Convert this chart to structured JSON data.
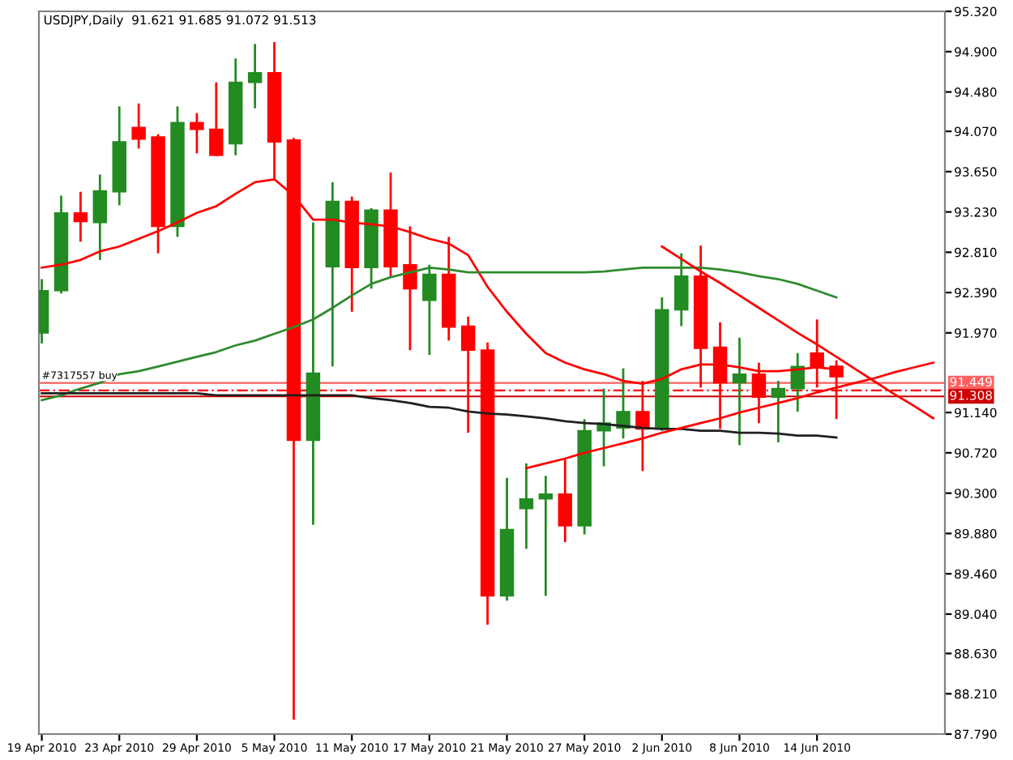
{
  "chart_data": {
    "type": "candlestick",
    "title": "USDJPY,Daily  91.621 91.685 91.072 91.513",
    "categories": [
      "19 Apr 2010",
      null,
      null,
      null,
      "23 Apr 2010",
      null,
      null,
      null,
      "29 Apr 2010",
      null,
      null,
      null,
      "5 May 2010",
      null,
      null,
      null,
      "11 May 2010",
      null,
      null,
      null,
      "17 May 2010",
      null,
      null,
      null,
      "21 May 2010",
      null,
      null,
      null,
      "27 May 2010",
      null,
      null,
      null,
      "2 Jun 2010",
      null,
      null,
      null,
      "8 Jun 2010",
      null,
      null,
      null,
      "14 Jun 2010",
      null,
      null,
      null,
      null,
      null,
      null
    ],
    "ohlc": [
      [
        91.97,
        92.53,
        91.86,
        92.41
      ],
      [
        92.41,
        93.4,
        92.38,
        93.22
      ],
      [
        93.22,
        93.44,
        92.92,
        93.13
      ],
      [
        93.12,
        93.62,
        92.73,
        93.45
      ],
      [
        93.44,
        94.33,
        93.3,
        93.96
      ],
      [
        94.11,
        94.36,
        93.89,
        93.99
      ],
      [
        94.01,
        94.04,
        92.8,
        93.08
      ],
      [
        93.08,
        94.33,
        92.97,
        94.16
      ],
      [
        94.16,
        94.26,
        93.84,
        94.09
      ],
      [
        94.09,
        94.58,
        93.81,
        93.82
      ],
      [
        93.94,
        94.83,
        93.82,
        94.58
      ],
      [
        94.58,
        94.98,
        94.31,
        94.68
      ],
      [
        94.68,
        95.0,
        93.57,
        93.96
      ],
      [
        93.98,
        94.0,
        87.94,
        90.85
      ],
      [
        90.85,
        93.12,
        89.97,
        91.55
      ],
      [
        92.66,
        93.54,
        91.62,
        93.34
      ],
      [
        93.34,
        93.39,
        92.19,
        92.65
      ],
      [
        92.65,
        93.27,
        92.43,
        93.25
      ],
      [
        93.25,
        93.64,
        92.56,
        92.66
      ],
      [
        92.68,
        93.08,
        91.79,
        92.43
      ],
      [
        92.31,
        92.68,
        91.74,
        92.58
      ],
      [
        92.58,
        92.97,
        91.89,
        92.03
      ],
      [
        92.04,
        92.14,
        90.93,
        91.79
      ],
      [
        91.79,
        91.87,
        88.93,
        89.23
      ],
      [
        89.23,
        90.46,
        89.18,
        89.92
      ],
      [
        90.14,
        90.61,
        89.72,
        90.24
      ],
      [
        90.24,
        90.48,
        89.23,
        90.29
      ],
      [
        90.29,
        90.65,
        89.79,
        89.96
      ],
      [
        89.96,
        91.07,
        89.87,
        90.95
      ],
      [
        90.95,
        91.39,
        90.58,
        91.03
      ],
      [
        90.98,
        91.6,
        90.87,
        91.15
      ],
      [
        91.15,
        91.47,
        90.53,
        90.97
      ],
      [
        90.97,
        92.34,
        90.95,
        92.21
      ],
      [
        92.21,
        92.8,
        92.04,
        92.56
      ],
      [
        92.56,
        92.88,
        91.4,
        91.81
      ],
      [
        91.82,
        92.08,
        90.97,
        91.45
      ],
      [
        91.45,
        91.92,
        90.8,
        91.54
      ],
      [
        91.54,
        91.66,
        91.03,
        91.3
      ],
      [
        91.3,
        91.47,
        90.83,
        91.39
      ],
      [
        91.39,
        91.76,
        91.15,
        91.62
      ],
      [
        91.76,
        92.11,
        91.4,
        91.62
      ],
      [
        91.621,
        91.685,
        91.072,
        91.513
      ],
      null,
      null,
      null,
      null,
      null
    ],
    "colors": [
      "#228b22",
      "#228b22",
      "#ff0000",
      "#228b22",
      "#228b22",
      "#ff0000",
      "#ff0000",
      "#228b22",
      "#ff0000",
      "#ff0000",
      "#228b22",
      "#228b22",
      "#ff0000",
      "#ff0000",
      "#228b22",
      "#228b22",
      "#ff0000",
      "#228b22",
      "#ff0000",
      "#ff0000",
      "#228b22",
      "#ff0000",
      "#ff0000",
      "#ff0000",
      "#228b22",
      "#228b22",
      "#228b22",
      "#ff0000",
      "#228b22",
      "#228b22",
      "#228b22",
      "#ff0000",
      "#228b22",
      "#228b22",
      "#ff0000",
      "#ff0000",
      "#228b22",
      "#ff0000",
      "#228b22",
      "#228b22",
      "#ff0000",
      "#ff0000",
      null,
      null,
      null,
      null,
      null
    ],
    "series": [
      {
        "type": "line",
        "color": "#ff0000",
        "values": [
          92.65,
          92.68,
          92.73,
          92.82,
          92.87,
          92.95,
          93.03,
          93.12,
          93.22,
          93.29,
          93.42,
          93.54,
          93.57,
          93.4,
          93.15,
          93.15,
          93.12,
          93.1,
          93.08,
          93.02,
          92.95,
          92.9,
          92.78,
          92.45,
          92.19,
          91.96,
          91.76,
          91.66,
          91.59,
          91.54,
          91.47,
          91.44,
          91.49,
          91.59,
          91.64,
          91.64,
          91.61,
          91.57,
          91.57,
          91.59,
          91.61,
          91.59,
          null,
          null,
          null,
          null,
          null
        ]
      },
      {
        "type": "line",
        "color": "#2e8b2e",
        "values": [
          91.27,
          91.32,
          91.39,
          91.45,
          91.54,
          91.57,
          91.62,
          91.67,
          91.72,
          91.77,
          91.84,
          91.89,
          91.96,
          92.03,
          92.11,
          92.23,
          92.36,
          92.48,
          92.55,
          92.6,
          92.65,
          92.63,
          92.6,
          92.6,
          92.6,
          92.6,
          92.6,
          92.6,
          92.6,
          92.61,
          92.63,
          92.65,
          92.65,
          92.65,
          92.65,
          92.63,
          92.6,
          92.56,
          92.53,
          92.48,
          92.41,
          92.34,
          null,
          null,
          null,
          null,
          null
        ]
      },
      {
        "type": "line",
        "color": "#202020",
        "values": [
          91.34,
          91.34,
          91.34,
          91.34,
          91.34,
          91.34,
          91.34,
          91.34,
          91.34,
          91.32,
          91.32,
          91.32,
          91.32,
          91.32,
          91.32,
          91.32,
          91.32,
          91.29,
          91.27,
          91.24,
          91.2,
          91.19,
          91.15,
          91.13,
          91.12,
          91.1,
          91.08,
          91.05,
          91.03,
          91.02,
          91.0,
          90.98,
          90.97,
          90.97,
          90.95,
          90.95,
          90.93,
          90.93,
          90.92,
          90.9,
          90.9,
          90.88,
          null,
          null,
          null,
          null,
          null
        ]
      },
      {
        "type": "line",
        "color": "#ff0000",
        "values": [
          null,
          null,
          null,
          null,
          null,
          null,
          null,
          null,
          null,
          null,
          null,
          null,
          null,
          null,
          null,
          null,
          null,
          null,
          null,
          null,
          null,
          null,
          null,
          null,
          null,
          null,
          null,
          null,
          null,
          null,
          null,
          null,
          92.87,
          92.74,
          92.61,
          92.49,
          92.36,
          92.23,
          92.1,
          91.97,
          91.85,
          91.72,
          91.59,
          91.46,
          91.33,
          91.21,
          91.08
        ]
      },
      {
        "type": "line",
        "color": "#ff0000",
        "values": [
          null,
          null,
          null,
          null,
          null,
          null,
          null,
          null,
          null,
          null,
          null,
          null,
          null,
          null,
          null,
          null,
          null,
          null,
          null,
          null,
          null,
          null,
          null,
          null,
          null,
          90.56,
          90.61,
          90.66,
          90.72,
          90.77,
          90.82,
          90.87,
          90.93,
          90.98,
          91.03,
          91.08,
          91.14,
          91.19,
          91.24,
          91.29,
          91.35,
          91.4,
          91.45,
          91.5,
          91.56,
          91.61,
          91.66
        ]
      }
    ],
    "ref_lines": [
      {
        "axis": "y",
        "value": 91.449,
        "label": "91.449",
        "color": "#ff6060",
        "line_style": "solid"
      },
      {
        "axis": "y",
        "value": 91.37,
        "color": "#ff0000",
        "line_style": "dashed"
      },
      {
        "axis": "y",
        "value": 91.308,
        "label": "91.308",
        "color": "#cc0000",
        "line_style": "solid"
      }
    ],
    "annotations": [
      {
        "text": "#7317557 buy",
        "x": "19 Apr 2010",
        "y": 91.449
      }
    ],
    "ylim": [
      87.79,
      95.32
    ],
    "yticks": [
      {
        "value": 95.32,
        "label": "95.320"
      },
      {
        "value": 94.9,
        "label": "94.900"
      },
      {
        "value": 94.48,
        "label": "94.480"
      },
      {
        "value": 94.07,
        "label": "94.070"
      },
      {
        "value": 93.65,
        "label": "93.650"
      },
      {
        "value": 93.23,
        "label": "93.230"
      },
      {
        "value": 92.81,
        "label": "92.810"
      },
      {
        "value": 92.39,
        "label": "92.390"
      },
      {
        "value": 91.97,
        "label": "91.970"
      },
      {
        "value": 91.14,
        "label": "91.140"
      },
      {
        "value": 90.72,
        "label": "90.720"
      },
      {
        "value": 90.3,
        "label": "90.300"
      },
      {
        "value": 89.88,
        "label": "89.880"
      },
      {
        "value": 89.46,
        "label": "89.460"
      },
      {
        "value": 89.04,
        "label": "89.040"
      },
      {
        "value": 88.63,
        "label": "88.630"
      },
      {
        "value": 88.21,
        "label": "88.210"
      },
      {
        "value": 87.79,
        "label": "87.790"
      }
    ],
    "grid": false,
    "legend": false
  }
}
